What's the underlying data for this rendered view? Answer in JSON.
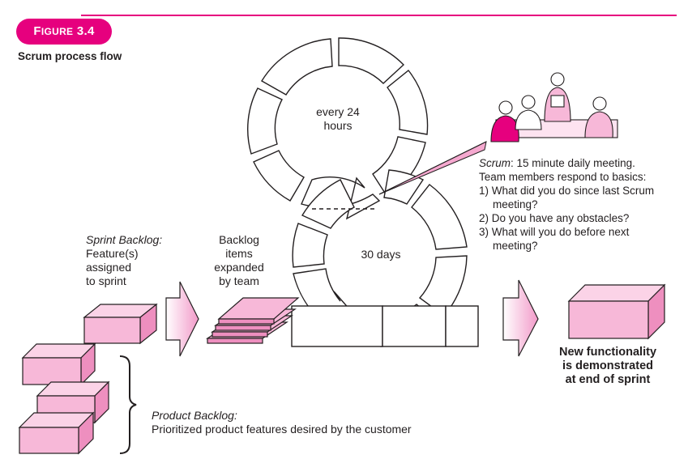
{
  "figure": {
    "label_prefix": "F",
    "label_smallcaps": "IGURE",
    "label_number": "3.4",
    "caption": "Scrum process flow"
  },
  "daily_cycle": {
    "label_line1": "every 24",
    "label_line2": "hours"
  },
  "sprint_cycle": {
    "label": "30 days"
  },
  "sprint_backlog": {
    "title": "Sprint Backlog:",
    "line1": "Feature(s)",
    "line2": "assigned",
    "line3": "to sprint"
  },
  "backlog_items": {
    "line1": "Backlog",
    "line2": "items",
    "line3": "expanded",
    "line4": "by team"
  },
  "scrum_meeting": {
    "term": "Scrum",
    "intro_rest": ": 15 minute daily meeting.",
    "line2": "Team members respond to basics:",
    "q1a": "1) What did you do since last Scrum",
    "q1b": "meeting?",
    "q2": "2) Do you have any obstacles?",
    "q3a": "3) What will you do before next",
    "q3b": "meeting?"
  },
  "product_backlog": {
    "title": "Product Backlog:",
    "description": "Prioritized product features desired by the customer"
  },
  "outcome": {
    "line1": "New functionality",
    "line2": "is demonstrated",
    "line3": "at end of sprint"
  },
  "colors": {
    "accent": "#e6007e",
    "box_fill": "#f7b8d8",
    "box_side": "#ee8fbf",
    "stroke": "#231f20"
  }
}
